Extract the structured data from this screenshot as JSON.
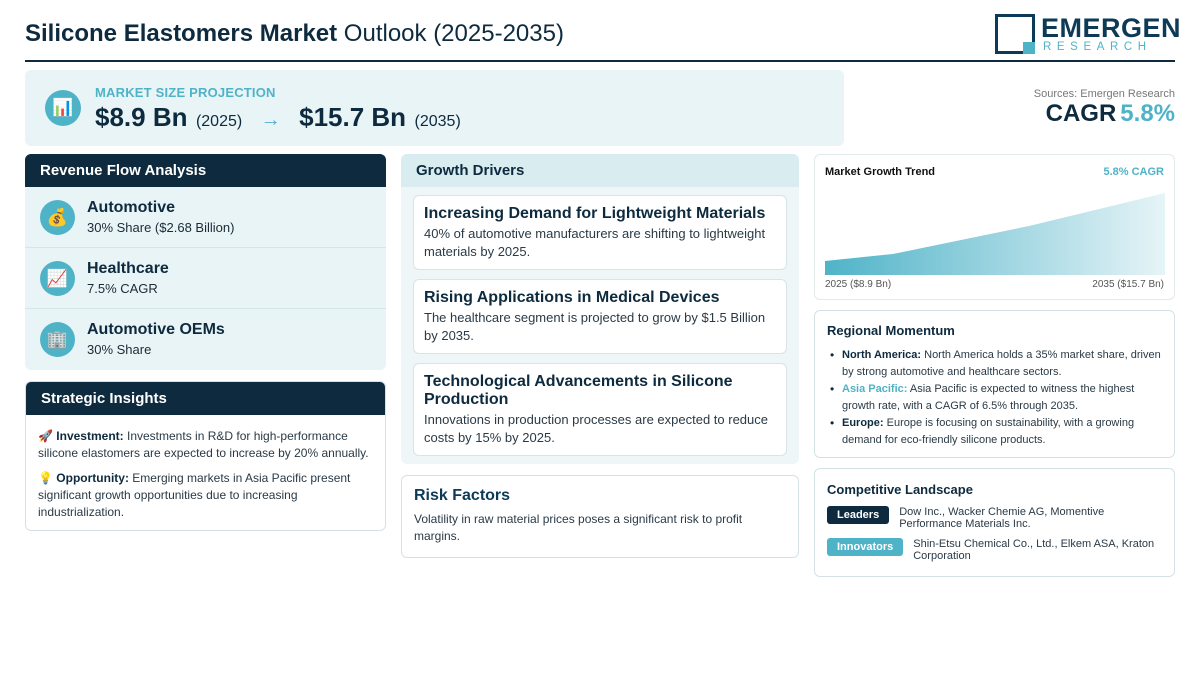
{
  "header": {
    "title_bold": "Silicone Elastomers Market",
    "title_rest": " Outlook (2025-2035)",
    "logo_name": "EMERGEN",
    "logo_sub": "RESEARCH"
  },
  "projection": {
    "icon": "bar-chart-icon",
    "label": "MARKET SIZE PROJECTION",
    "start_value": "$8.9 Bn",
    "start_year": "(2025)",
    "arrow": "→",
    "end_value": "$15.7 Bn",
    "end_year": "(2035)"
  },
  "summary": {
    "sources": "Sources: Emergen Research",
    "cagr_label": "CAGR",
    "cagr_value": "5.8%"
  },
  "revenue_flow": {
    "title": "Revenue Flow Analysis",
    "items": [
      {
        "icon": "money-bag-icon",
        "name": "Automotive",
        "detail": "30% Share ($2.68 Billion)"
      },
      {
        "icon": "trend-up-chart-icon",
        "name": "Healthcare",
        "detail": "7.5% CAGR"
      },
      {
        "icon": "office-building-icon",
        "name": "Automotive OEMs",
        "detail": "30% Share"
      }
    ]
  },
  "strategic_insights": {
    "title": "Strategic Insights",
    "items": [
      {
        "icon": "rocket-icon",
        "label": "Investment:",
        "text": "Investments in R&D for high-performance silicone elastomers are expected to increase by 20% annually."
      },
      {
        "icon": "lightbulb-icon",
        "label": "Opportunity:",
        "text": "Emerging markets in Asia Pacific present significant growth opportunities due to increasing industrialization."
      }
    ]
  },
  "growth_drivers": {
    "title": "Growth Drivers",
    "items": [
      {
        "title": "Increasing Demand for Lightweight Materials",
        "text": "40% of automotive manufacturers are shifting to lightweight materials by 2025."
      },
      {
        "title": "Rising Applications in Medical Devices",
        "text": "The healthcare segment is projected to grow by $1.5 Billion by 2035."
      },
      {
        "title": "Technological Advancements in Silicone Production",
        "text": "Innovations in production processes are expected to reduce costs by 15% by 2025."
      }
    ]
  },
  "risk_factors": {
    "title": "Risk Factors",
    "text": "Volatility in raw material prices poses a significant risk to profit margins."
  },
  "market_trend": {
    "title": "Market Growth Trend",
    "cagr_label": "5.8% CAGR",
    "start_label": "2025 ($8.9 Bn)",
    "end_label": "2035 ($15.7 Bn)",
    "colors": {
      "dark": "#4fb3c8",
      "light": "#e6f4f7"
    }
  },
  "chart_data": {
    "type": "area",
    "x": [
      2025,
      2027,
      2031,
      2035
    ],
    "values": [
      8.9,
      9.6,
      12.4,
      15.7
    ],
    "title": "Market Growth Trend",
    "xlabel": "",
    "ylabel": "",
    "grid": false,
    "legend": "none"
  },
  "regional_momentum": {
    "title": "Regional Momentum",
    "items": [
      {
        "region": "North America:",
        "accent": false,
        "text": "North America holds a 35% market share, driven by strong automotive and healthcare sectors."
      },
      {
        "region": "Asia Pacific:",
        "accent": true,
        "text": "Asia Pacific is expected to witness the highest growth rate, with a CAGR of 6.5% through 2035."
      },
      {
        "region": "Europe:",
        "accent": false,
        "text": "Europe is focusing on sustainability, with a growing demand for eco-friendly silicone products."
      }
    ]
  },
  "competitive_landscape": {
    "title": "Competitive Landscape",
    "groups": [
      {
        "label": "Leaders",
        "color": "#0d2a3e",
        "companies": "Dow Inc., Wacker Chemie AG, Momentive Performance Materials Inc."
      },
      {
        "label": "Innovators",
        "color": "#4fb3c8",
        "companies": "Shin-Etsu Chemical Co., Ltd., Elkem ASA, Kraton Corporation"
      }
    ]
  }
}
